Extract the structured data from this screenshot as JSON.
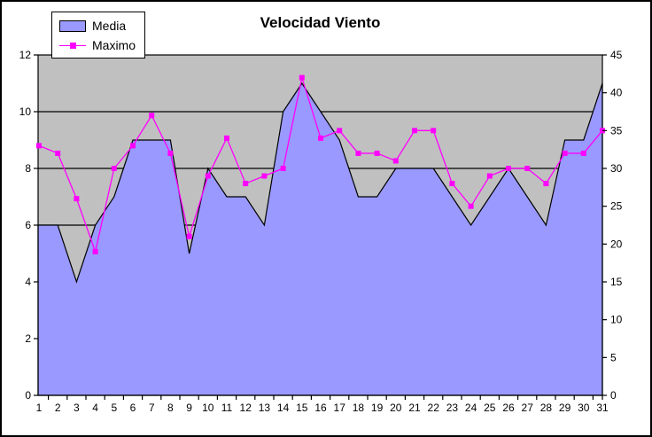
{
  "title": "Velocidad Viento",
  "legend": {
    "items": [
      {
        "label": "Media",
        "type": "area",
        "color": "#9999ff"
      },
      {
        "label": "Maximo",
        "type": "line",
        "color": "#ff00ff"
      }
    ]
  },
  "colors": {
    "plot_background": "#c0c0c0",
    "area_fill": "#9999ff",
    "area_outline": "#000000",
    "line_series": "#ff00ff",
    "axis": "#000000",
    "chart_background": "#ffffff"
  },
  "chart_data": {
    "type": "area-line combo",
    "title": "Velocidad Viento",
    "x": [
      1,
      2,
      3,
      4,
      5,
      6,
      7,
      8,
      9,
      10,
      11,
      12,
      13,
      14,
      15,
      16,
      17,
      18,
      19,
      20,
      21,
      22,
      23,
      24,
      25,
      26,
      27,
      28,
      29,
      30,
      31
    ],
    "series": [
      {
        "name": "Media",
        "type": "area",
        "axis": "left",
        "color": "#9999ff",
        "values": [
          6,
          6,
          4,
          6,
          7,
          9,
          9,
          9,
          5,
          8,
          7,
          7,
          6,
          10,
          11,
          10,
          9,
          7,
          7,
          8,
          8,
          8,
          7,
          6,
          7,
          8,
          7,
          6,
          9,
          9,
          11
        ]
      },
      {
        "name": "Maximo",
        "type": "line",
        "axis": "right",
        "color": "#ff00ff",
        "marker": "square",
        "values": [
          33,
          32,
          26,
          19,
          30,
          33,
          37,
          32,
          21,
          29,
          34,
          28,
          29,
          30,
          42,
          34,
          35,
          32,
          32,
          31,
          35,
          35,
          28,
          25,
          29,
          30,
          30,
          28,
          32,
          32,
          35
        ]
      }
    ],
    "left_axis": {
      "min": 0,
      "max": 12,
      "step": 2
    },
    "right_axis": {
      "min": 0,
      "max": 45,
      "step": 5
    },
    "gridlines": {
      "horizontal": true,
      "left_axis_step": 2
    },
    "legend_position": "top-left"
  }
}
